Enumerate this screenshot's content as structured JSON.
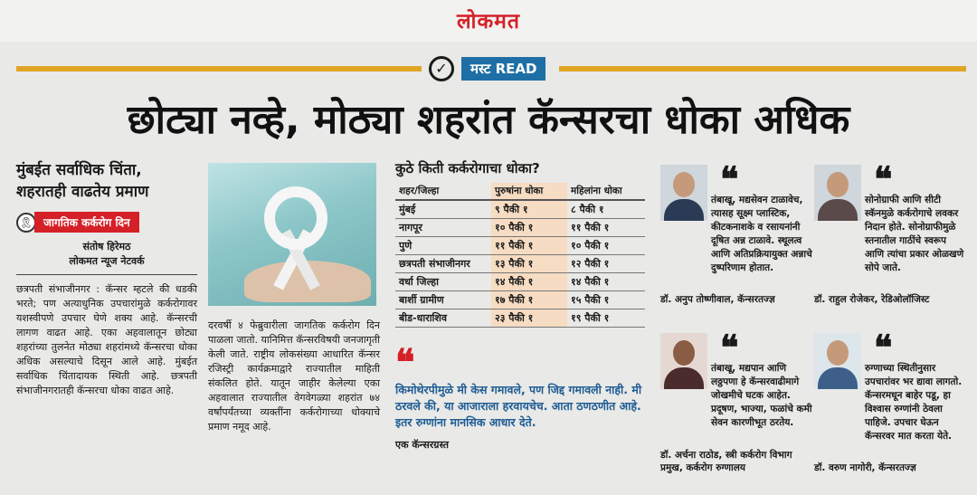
{
  "masthead": {
    "logo": "लोकमत"
  },
  "section": {
    "badge_icon": "check-circle-icon",
    "badge": "मस्ट READ"
  },
  "headline": "छोट्या नव्हे, मोठ्या शहरांत कॅन्सरचा धोका अधिक",
  "lead": {
    "subhead_1": "मुंबईत सर्वाधिक चिंता,",
    "subhead_2": "शहरातही वाढतेय प्रमाण",
    "tag": "जागतिक कर्करोग दिन",
    "author": "संतोष हिरेमठ",
    "agency": "लोकमत न्यूज नेटवर्क",
    "body": "छत्रपती संभाजीनगर : कॅन्सर म्हटले की धडकी भरते; पण अत्याधुनिक उपचारांमुळे कर्करोगावर यशस्वीपणे उपचार घेणे शक्य आहे. कॅन्सरची लागण वाढत आहे. एका अहवालातून छोट्या शहरांच्या तुलनेत मोठ्या शहरांमध्ये कॅन्सरचा धोका अधिक असल्याचे दिसून आले आहे. मुंबईत सर्वाधिक चिंतादायक स्थिती आहे. छत्रपती संभाजीनगरातही कॅन्सरचा धोका वाढत आहे."
  },
  "body2": "दरवर्षी ४ फेब्रुवारीला जागतिक कर्करोग दिन पाळला जातो. यानिमित्त कॅन्सरविषयी जनजागृती केली जाते. राष्ट्रीय लोकसंख्या आधारित कॅन्सर रजिस्ट्री कार्यक्रमाद्वारे राज्यातील माहिती संकलित होते. यातून जाहीर केलेल्या एका अहवालात राज्यातील वेगवेगळ्या शहरांत ७४ वर्षांपर्यंतच्या व्यक्तींना कर्करोगाच्या धोक्याचे प्रमाण नमूद आहे.",
  "risk_table": {
    "title": "कुठे किती कर्करोगाचा धोका?",
    "headers": [
      "शहर/जिल्हा",
      "पुरुषांना धोका",
      "महिलांना धोका"
    ],
    "rows": [
      [
        "मुंबई",
        "९ पैकी १",
        "८ पैकी १"
      ],
      [
        "नागपूर",
        "१० पैकी १",
        "११ पैकी १"
      ],
      [
        "पुणे",
        "११ पैकी १",
        "१० पैकी १"
      ],
      [
        "छत्रपती संभाजीनगर",
        "१३ पैकी १",
        "१२ पैकी १"
      ],
      [
        "वर्धा जिल्हा",
        "१४ पैकी १",
        "१४ पैकी १"
      ],
      [
        "बार्शी ग्रामीण",
        "१७ पैकी १",
        "१५ पैकी १"
      ],
      [
        "बीड-धाराशिव",
        "२३ पैकी १",
        "१९ पैकी १"
      ]
    ]
  },
  "patient_quote": {
    "mark": "❝",
    "text": "किमोथेरपीमुळे मी केस गमावले, पण जिद्द गमावली नाही. मी ठरवले की, या आजाराला हरवायचेच. आता ठणठणीत आहे. इतर रुग्णांना मानसिक आधार देते.",
    "source": "एक कॅन्सरग्रस्त"
  },
  "experts": [
    {
      "mark": "❝",
      "text": "तंबाखू, मद्यसेवन टाळावेच, त्यासह सूक्ष्म प्लास्टिक, कीटकनाशके व रसायनांनी दूषित अन्न टाळावे. स्थूलत्व आणि अतिप्रक्रियायुक्त अन्नाचे दुष्परिणाम होतात.",
      "name": "डॉ. अनुप तोष्णीवाल, कॅन्सरतज्ज्ञ"
    },
    {
      "mark": "❝",
      "text": "सोनोग्राफी आणि सीटी स्कॅनमुळे कर्करोगाचे लवकर निदान होते. सोनोग्राफीमुळे स्तनातील गाठींचे स्वरूप आणि त्यांचा प्रकार ओळखणे सोपे जाते.",
      "name": "डॉ. राहुल रोजेकर, रेडिओलॉजिस्ट"
    },
    {
      "mark": "❝",
      "text": "तंबाखू, मद्यपान आणि लठ्ठपणा हे कॅन्सरवाढीमागे जोखमीचे घटक आहेत. प्रदूषण, भाज्या, फळांचे कमी सेवन कारणीभूत ठरतेय.",
      "name": "डॉ. अर्चना राठोड, स्त्री कर्करोग विभाग प्रमुख, कर्करोग रुग्णालय"
    },
    {
      "mark": "❝",
      "text": "रुग्णाच्या स्थितीनुसार उपचारांवर भर द्यावा लागतो. कॅन्सरमधून बाहेर पडू, हा विश्वास रुग्णांनी ठेवला पाहिजे. उपचार घेऊन कॅन्सरवर मात करता येते.",
      "name": "डॉ. वरुण नागोरी, कॅन्सरतज्ज्ञ"
    }
  ]
}
